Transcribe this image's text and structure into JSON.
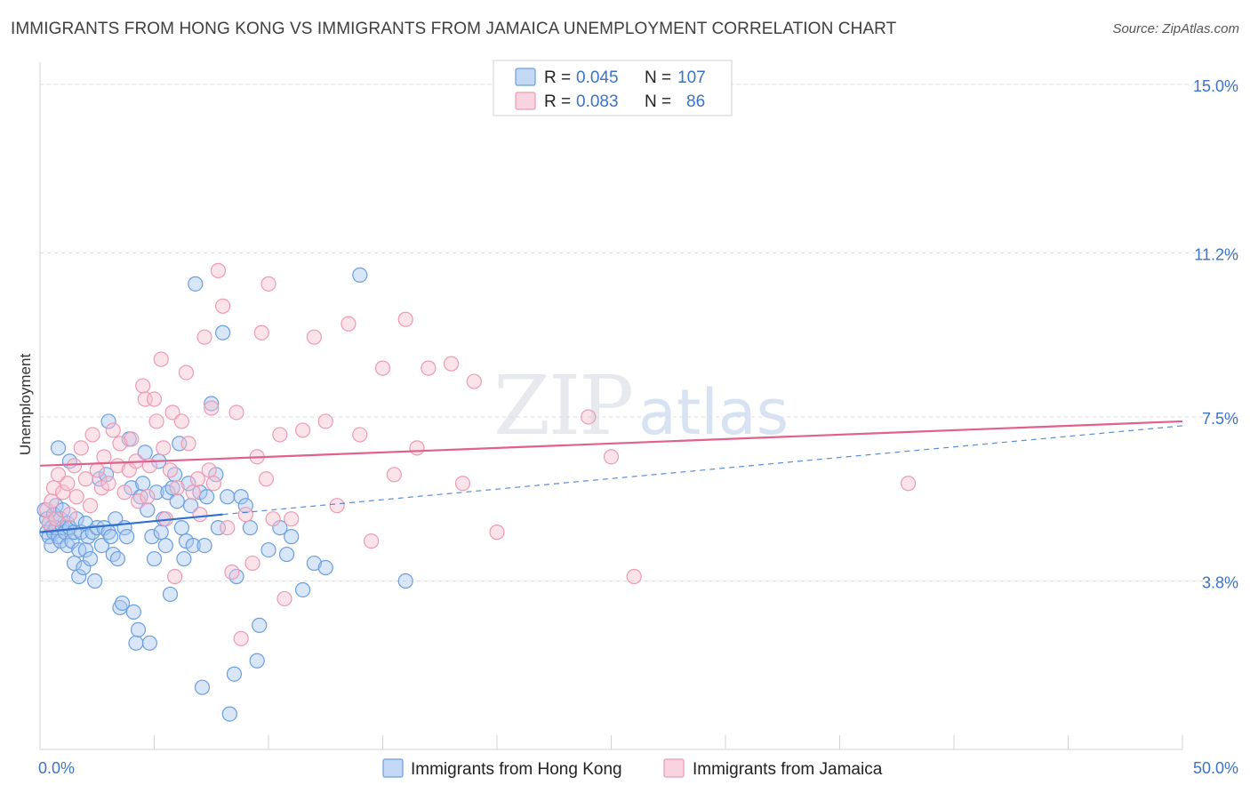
{
  "title": "IMMIGRANTS FROM HONG KONG VS IMMIGRANTS FROM JAMAICA UNEMPLOYMENT CORRELATION CHART",
  "source": "Source: ZipAtlas.com",
  "watermark": {
    "zip": "ZIP",
    "atlas": "atlas"
  },
  "legend": {
    "rows": [
      {
        "r_label": "R =",
        "r_value": "0.045",
        "n_label": "N =",
        "n_value": "107"
      },
      {
        "r_label": "R =",
        "r_value": "0.083",
        "n_label": "N =",
        "n_value": "86"
      }
    ]
  },
  "bottom_legend": [
    "Immigrants from Hong Kong",
    "Immigrants from Jamaica"
  ],
  "colors": {
    "blue_fill": "#a9c8f0",
    "blue_stroke": "#6a9fe0",
    "blue_line": "#2f6fd0",
    "pink_fill": "#f7c1d1",
    "pink_stroke": "#ee9ab4",
    "pink_line": "#e0628c",
    "grid": "#dadce0",
    "axis_text": "#3b73c6"
  },
  "chart_data": {
    "type": "scatter",
    "title": "IMMIGRANTS FROM HONG KONG VS IMMIGRANTS FROM JAMAICA UNEMPLOYMENT CORRELATION CHART",
    "xlabel": "",
    "ylabel": "Unemployment",
    "xlim": [
      0,
      50
    ],
    "ylim": [
      0,
      15.5
    ],
    "x_tick_labels": [
      {
        "value": 0,
        "label": "0.0%"
      },
      {
        "value": 50,
        "label": "50.0%"
      }
    ],
    "y_ticks": [
      {
        "value": 3.8,
        "label": "3.8%"
      },
      {
        "value": 7.5,
        "label": "7.5%"
      },
      {
        "value": 11.2,
        "label": "11.2%"
      },
      {
        "value": 15.0,
        "label": "15.0%"
      }
    ],
    "series": [
      {
        "name": "Immigrants from Hong Kong",
        "color": "blue",
        "trend": {
          "solid": [
            [
              0,
              4.9
            ],
            [
              8,
              5.3
            ]
          ],
          "dashed": [
            [
              8,
              5.3
            ],
            [
              50,
              7.3
            ]
          ]
        },
        "points": [
          [
            0.2,
            5.4
          ],
          [
            0.3,
            4.9
          ],
          [
            0.3,
            5.2
          ],
          [
            0.4,
            4.8
          ],
          [
            0.4,
            5.1
          ],
          [
            0.5,
            4.6
          ],
          [
            0.5,
            5.0
          ],
          [
            0.6,
            5.3
          ],
          [
            0.6,
            4.9
          ],
          [
            0.7,
            5.5
          ],
          [
            0.7,
            5.0
          ],
          [
            0.8,
            4.8
          ],
          [
            0.8,
            6.8
          ],
          [
            0.9,
            5.2
          ],
          [
            0.9,
            4.7
          ],
          [
            1.0,
            5.0
          ],
          [
            1.0,
            5.4
          ],
          [
            1.1,
            4.9
          ],
          [
            1.2,
            4.6
          ],
          [
            1.2,
            5.1
          ],
          [
            1.3,
            6.5
          ],
          [
            1.3,
            5.0
          ],
          [
            1.4,
            4.7
          ],
          [
            1.5,
            4.2
          ],
          [
            1.5,
            4.9
          ],
          [
            1.6,
            5.2
          ],
          [
            1.7,
            4.5
          ],
          [
            1.7,
            3.9
          ],
          [
            1.8,
            4.9
          ],
          [
            1.9,
            4.1
          ],
          [
            2.0,
            5.1
          ],
          [
            2.0,
            4.5
          ],
          [
            2.1,
            4.8
          ],
          [
            2.2,
            4.3
          ],
          [
            2.3,
            4.9
          ],
          [
            2.4,
            3.8
          ],
          [
            2.5,
            5.0
          ],
          [
            2.6,
            6.1
          ],
          [
            2.7,
            4.6
          ],
          [
            2.8,
            5.0
          ],
          [
            2.9,
            6.2
          ],
          [
            3.0,
            7.4
          ],
          [
            3.0,
            4.9
          ],
          [
            3.1,
            4.8
          ],
          [
            3.2,
            4.4
          ],
          [
            3.3,
            5.2
          ],
          [
            3.4,
            4.3
          ],
          [
            3.5,
            3.2
          ],
          [
            3.6,
            3.3
          ],
          [
            3.7,
            5.0
          ],
          [
            3.8,
            4.8
          ],
          [
            3.9,
            7.0
          ],
          [
            4.0,
            5.9
          ],
          [
            4.1,
            3.1
          ],
          [
            4.2,
            2.4
          ],
          [
            4.3,
            2.7
          ],
          [
            4.4,
            5.7
          ],
          [
            4.5,
            6.0
          ],
          [
            4.6,
            6.7
          ],
          [
            4.7,
            5.4
          ],
          [
            4.8,
            2.4
          ],
          [
            4.9,
            4.8
          ],
          [
            5.0,
            4.3
          ],
          [
            5.1,
            5.8
          ],
          [
            5.2,
            6.5
          ],
          [
            5.3,
            4.9
          ],
          [
            5.4,
            5.2
          ],
          [
            5.5,
            4.6
          ],
          [
            5.6,
            5.8
          ],
          [
            5.7,
            3.5
          ],
          [
            5.8,
            5.9
          ],
          [
            5.9,
            6.2
          ],
          [
            6.0,
            5.6
          ],
          [
            6.1,
            6.9
          ],
          [
            6.2,
            5.0
          ],
          [
            6.3,
            4.3
          ],
          [
            6.4,
            4.7
          ],
          [
            6.5,
            6.0
          ],
          [
            6.6,
            5.5
          ],
          [
            6.7,
            4.6
          ],
          [
            6.8,
            10.5
          ],
          [
            7.0,
            5.8
          ],
          [
            7.1,
            1.4
          ],
          [
            7.2,
            4.6
          ],
          [
            7.3,
            5.7
          ],
          [
            7.5,
            7.8
          ],
          [
            7.7,
            6.2
          ],
          [
            7.8,
            5.0
          ],
          [
            8.0,
            9.4
          ],
          [
            8.2,
            5.7
          ],
          [
            8.5,
            1.7
          ],
          [
            8.6,
            3.9
          ],
          [
            8.8,
            5.7
          ],
          [
            9.0,
            5.5
          ],
          [
            9.2,
            5.0
          ],
          [
            9.5,
            2.0
          ],
          [
            9.6,
            2.8
          ],
          [
            10.0,
            4.5
          ],
          [
            10.5,
            5.0
          ],
          [
            10.8,
            4.4
          ],
          [
            11.0,
            4.8
          ],
          [
            11.5,
            3.6
          ],
          [
            12.0,
            4.2
          ],
          [
            12.5,
            4.1
          ],
          [
            14.0,
            10.7
          ],
          [
            16.0,
            3.8
          ],
          [
            8.3,
            0.8
          ]
        ]
      },
      {
        "name": "Immigrants from Jamaica",
        "color": "pink",
        "trend": {
          "solid": [
            [
              0,
              6.4
            ],
            [
              50,
              7.4
            ]
          ]
        },
        "points": [
          [
            0.3,
            5.4
          ],
          [
            0.4,
            5.1
          ],
          [
            0.5,
            5.6
          ],
          [
            0.6,
            5.9
          ],
          [
            0.7,
            5.2
          ],
          [
            0.8,
            6.2
          ],
          [
            1.0,
            5.8
          ],
          [
            1.2,
            6.0
          ],
          [
            1.3,
            5.3
          ],
          [
            1.5,
            6.4
          ],
          [
            1.6,
            5.7
          ],
          [
            1.8,
            6.8
          ],
          [
            2.0,
            6.1
          ],
          [
            2.2,
            5.5
          ],
          [
            2.3,
            7.1
          ],
          [
            2.5,
            6.3
          ],
          [
            2.7,
            5.9
          ],
          [
            2.8,
            6.6
          ],
          [
            3.0,
            6.0
          ],
          [
            3.2,
            7.2
          ],
          [
            3.4,
            6.4
          ],
          [
            3.5,
            6.9
          ],
          [
            3.7,
            5.8
          ],
          [
            3.9,
            6.3
          ],
          [
            4.0,
            7.0
          ],
          [
            4.2,
            6.5
          ],
          [
            4.3,
            5.6
          ],
          [
            4.5,
            8.2
          ],
          [
            4.6,
            7.9
          ],
          [
            4.7,
            5.7
          ],
          [
            4.8,
            6.4
          ],
          [
            5.0,
            7.9
          ],
          [
            5.1,
            7.4
          ],
          [
            5.3,
            8.8
          ],
          [
            5.4,
            6.8
          ],
          [
            5.5,
            5.2
          ],
          [
            5.7,
            6.3
          ],
          [
            5.8,
            7.6
          ],
          [
            6.0,
            5.9
          ],
          [
            6.2,
            7.4
          ],
          [
            6.4,
            8.5
          ],
          [
            6.5,
            6.9
          ],
          [
            6.7,
            5.8
          ],
          [
            6.9,
            6.1
          ],
          [
            7.0,
            5.3
          ],
          [
            7.2,
            9.3
          ],
          [
            7.4,
            6.3
          ],
          [
            7.5,
            7.7
          ],
          [
            7.6,
            6.0
          ],
          [
            7.8,
            10.8
          ],
          [
            8.0,
            10.0
          ],
          [
            8.2,
            5.0
          ],
          [
            8.4,
            4.0
          ],
          [
            8.6,
            7.6
          ],
          [
            8.8,
            2.5
          ],
          [
            9.0,
            5.3
          ],
          [
            9.3,
            4.2
          ],
          [
            9.5,
            6.6
          ],
          [
            9.7,
            9.4
          ],
          [
            10.0,
            10.5
          ],
          [
            10.2,
            5.2
          ],
          [
            10.5,
            7.1
          ],
          [
            10.7,
            3.4
          ],
          [
            11.0,
            5.2
          ],
          [
            11.5,
            7.2
          ],
          [
            12.0,
            9.3
          ],
          [
            12.5,
            7.4
          ],
          [
            13.0,
            5.5
          ],
          [
            13.5,
            9.6
          ],
          [
            14.0,
            7.1
          ],
          [
            14.5,
            4.7
          ],
          [
            15.0,
            8.6
          ],
          [
            15.5,
            6.2
          ],
          [
            16.0,
            9.7
          ],
          [
            16.5,
            6.8
          ],
          [
            17.0,
            8.6
          ],
          [
            18.0,
            8.7
          ],
          [
            18.5,
            6.0
          ],
          [
            19.0,
            8.3
          ],
          [
            20.0,
            4.9
          ],
          [
            24.0,
            7.5
          ],
          [
            25.0,
            6.6
          ],
          [
            26.0,
            3.9
          ],
          [
            38.0,
            6.0
          ],
          [
            5.9,
            3.9
          ],
          [
            9.9,
            6.1
          ]
        ]
      }
    ]
  }
}
